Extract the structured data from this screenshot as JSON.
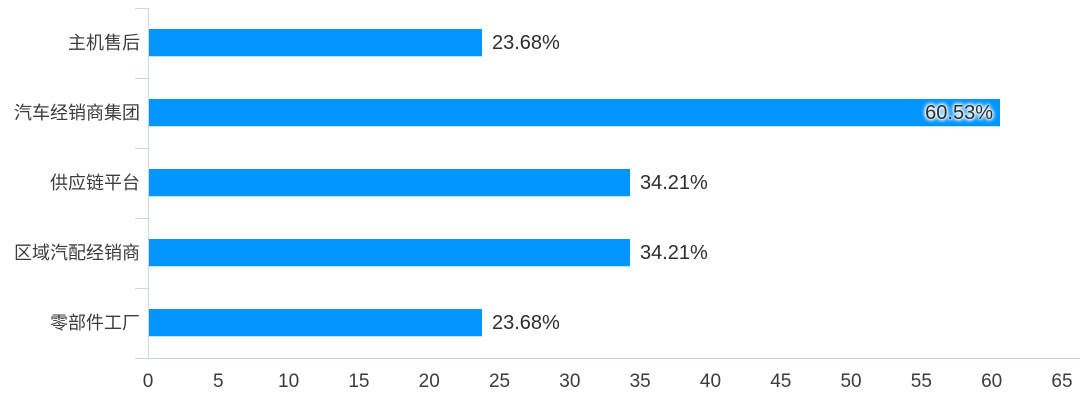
{
  "chart_data": {
    "type": "bar",
    "orientation": "horizontal",
    "title": "",
    "xlabel": "",
    "ylabel": "",
    "categories": [
      "主机售后",
      "汽车经销商集团",
      "供应链平台",
      "区域汽配经销商",
      "零部件工厂"
    ],
    "values": [
      23.68,
      60.53,
      34.21,
      34.21,
      23.68
    ],
    "data_labels": [
      "23.68%",
      "60.53%",
      "34.21%",
      "34.21%",
      "23.68%"
    ],
    "data_label_inside": [
      false,
      true,
      false,
      false,
      false
    ],
    "xlim": [
      0,
      65
    ],
    "xticks": [
      0,
      5,
      10,
      15,
      20,
      25,
      30,
      35,
      40,
      45,
      50,
      55,
      60,
      65
    ],
    "grid": false,
    "legend": null,
    "colors": {
      "bar": "#0195ff",
      "axis": "#ccd6e8",
      "category_text": "#3d3d3d",
      "value_text": "#2d2d2d",
      "tick_text": "#3b3b3b"
    }
  }
}
